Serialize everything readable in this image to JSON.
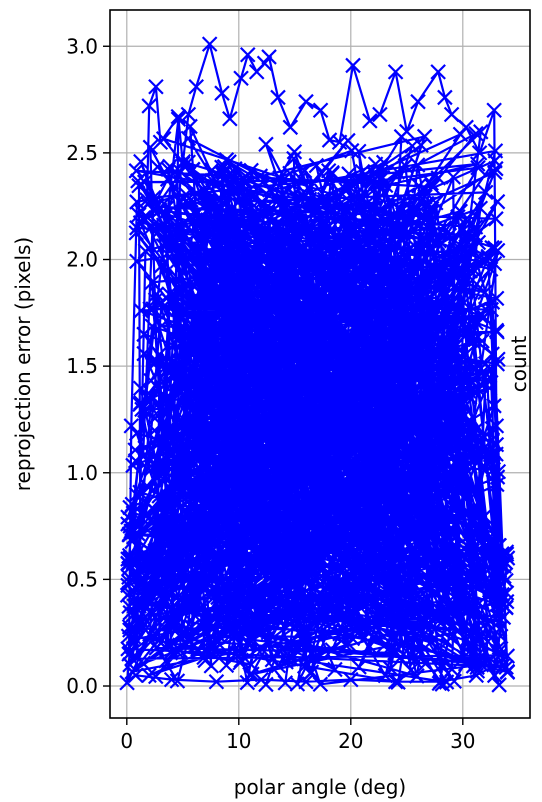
{
  "chart_data": {
    "type": "scatter",
    "title": "",
    "xlabel": "polar angle (deg)",
    "ylabel": "reprojection error (pixels)",
    "right_label": "count",
    "xlim": [
      -1.5,
      36
    ],
    "ylim": [
      -0.15,
      3.17
    ],
    "x_ticks": [
      0,
      10,
      20,
      30
    ],
    "x_tick_labels": [
      "0",
      "10",
      "20",
      "30"
    ],
    "y_ticks": [
      0.0,
      0.5,
      1.0,
      1.5,
      2.0,
      2.5,
      3.0
    ],
    "y_tick_labels": [
      "0.0",
      "0.5",
      "1.0",
      "1.5",
      "2.0",
      "2.5",
      "3.0"
    ],
    "grid": true,
    "marker": "x",
    "series_color": "#0000ff",
    "x_range": [
      0,
      34
    ],
    "y_range": [
      0.0,
      3.0
    ],
    "highlight_points": [
      {
        "x": 0.2,
        "y": 0.15
      },
      {
        "x": 0.3,
        "y": 0.75
      },
      {
        "x": 0.4,
        "y": 1.22
      },
      {
        "x": 0.9,
        "y": 2.27
      },
      {
        "x": 1.8,
        "y": 2.28
      },
      {
        "x": 2.0,
        "y": 2.72
      },
      {
        "x": 2.6,
        "y": 2.81
      },
      {
        "x": 3.0,
        "y": 2.55
      },
      {
        "x": 4.6,
        "y": 2.67
      },
      {
        "x": 5.0,
        "y": 2.45
      },
      {
        "x": 5.5,
        "y": 2.68
      },
      {
        "x": 6.2,
        "y": 2.81
      },
      {
        "x": 7.4,
        "y": 3.01
      },
      {
        "x": 8.5,
        "y": 2.78
      },
      {
        "x": 9.2,
        "y": 2.66
      },
      {
        "x": 10.2,
        "y": 2.85
      },
      {
        "x": 10.8,
        "y": 2.96
      },
      {
        "x": 11.6,
        "y": 2.88
      },
      {
        "x": 12.3,
        "y": 2.92
      },
      {
        "x": 12.7,
        "y": 2.95
      },
      {
        "x": 13.5,
        "y": 2.76
      },
      {
        "x": 14.6,
        "y": 2.62
      },
      {
        "x": 16.0,
        "y": 2.74
      },
      {
        "x": 17.3,
        "y": 2.7
      },
      {
        "x": 18.1,
        "y": 2.56
      },
      {
        "x": 19.0,
        "y": 2.55
      },
      {
        "x": 20.2,
        "y": 2.91
      },
      {
        "x": 21.7,
        "y": 2.65
      },
      {
        "x": 22.6,
        "y": 2.68
      },
      {
        "x": 24.0,
        "y": 2.88
      },
      {
        "x": 25.0,
        "y": 2.6
      },
      {
        "x": 26.0,
        "y": 2.74
      },
      {
        "x": 27.8,
        "y": 2.88
      },
      {
        "x": 28.4,
        "y": 2.76
      },
      {
        "x": 29.0,
        "y": 2.68
      },
      {
        "x": 30.3,
        "y": 2.62
      },
      {
        "x": 31.5,
        "y": 2.5
      },
      {
        "x": 32.8,
        "y": 2.7
      },
      {
        "x": 33.0,
        "y": 1.22
      },
      {
        "x": 33.5,
        "y": 0.62
      },
      {
        "x": 34.0,
        "y": 0.6
      },
      {
        "x": 33.0,
        "y": 0.1
      },
      {
        "x": 31.2,
        "y": 0.05
      },
      {
        "x": 28.0,
        "y": 0.02
      },
      {
        "x": 24.0,
        "y": 0.02
      },
      {
        "x": 20.0,
        "y": 0.03
      },
      {
        "x": 16.0,
        "y": 0.02
      },
      {
        "x": 12.0,
        "y": 0.03
      },
      {
        "x": 8.0,
        "y": 0.02
      },
      {
        "x": 4.0,
        "y": 0.03
      },
      {
        "x": 0.8,
        "y": 0.05
      }
    ]
  }
}
